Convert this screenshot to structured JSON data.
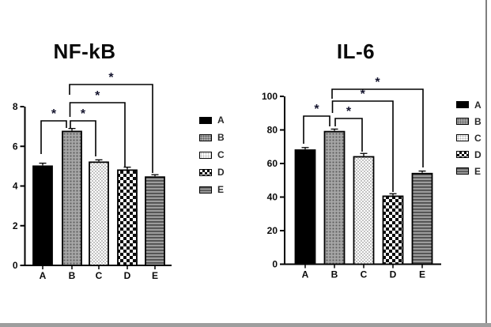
{
  "window": {
    "background": "#ffffff",
    "right_border_color": "#7f7f7f",
    "bottom_bar_color": "#9e9e9e"
  },
  "colors": {
    "bar_outline": "#000000",
    "axis": "#000000",
    "asterisk": "#14142e",
    "pattern_gray": "#a8a8a8",
    "pattern_dark_gray": "#5f5f5f",
    "stripe_dark": "#4f4f4f",
    "stripe_light": "#9c9c9c"
  },
  "chart_data": [
    {
      "type": "bar",
      "title": "NF-kB",
      "xlabel": "",
      "ylabel": "",
      "grid": false,
      "categories": [
        "A",
        "B",
        "C",
        "D",
        "E"
      ],
      "values": [
        5.0,
        6.75,
        5.2,
        4.8,
        4.45
      ],
      "errors": [
        0.15,
        0.15,
        0.12,
        0.15,
        0.12
      ],
      "ylim": [
        0,
        8
      ],
      "yticks": [
        0,
        2,
        4,
        6,
        8
      ],
      "legend_position": "right",
      "legend": [
        {
          "label": "A",
          "pattern": "solid-black"
        },
        {
          "label": "B",
          "pattern": "gray-dot-grid"
        },
        {
          "label": "C",
          "pattern": "fine-checker"
        },
        {
          "label": "D",
          "pattern": "coarse-checker"
        },
        {
          "label": "E",
          "pattern": "h-stripes"
        }
      ],
      "significance_brackets": [
        {
          "between": [
            "A",
            "B"
          ],
          "label": "*"
        },
        {
          "between": [
            "B",
            "C"
          ],
          "label": "*"
        },
        {
          "between": [
            "B",
            "D"
          ],
          "label": "*"
        },
        {
          "between": [
            "B",
            "E"
          ],
          "label": "*"
        }
      ]
    },
    {
      "type": "bar",
      "title": "IL-6",
      "xlabel": "",
      "ylabel": "",
      "grid": false,
      "categories": [
        "A",
        "B",
        "C",
        "D",
        "E"
      ],
      "values": [
        68,
        79,
        64,
        40.5,
        54
      ],
      "errors": [
        1.5,
        1.5,
        2,
        1.5,
        1.5
      ],
      "ylim": [
        0,
        100
      ],
      "yticks": [
        0,
        20,
        40,
        60,
        80,
        100
      ],
      "legend_position": "right",
      "legend": [
        {
          "label": "A",
          "pattern": "solid-black"
        },
        {
          "label": "B",
          "pattern": "gray-dot-grid"
        },
        {
          "label": "C",
          "pattern": "fine-checker"
        },
        {
          "label": "D",
          "pattern": "coarse-checker"
        },
        {
          "label": "E",
          "pattern": "h-stripes"
        }
      ],
      "significance_brackets": [
        {
          "between": [
            "A",
            "B"
          ],
          "label": "*"
        },
        {
          "between": [
            "B",
            "C"
          ],
          "label": "*"
        },
        {
          "between": [
            "B",
            "D"
          ],
          "label": "*"
        },
        {
          "between": [
            "B",
            "E"
          ],
          "label": "*"
        }
      ]
    }
  ]
}
